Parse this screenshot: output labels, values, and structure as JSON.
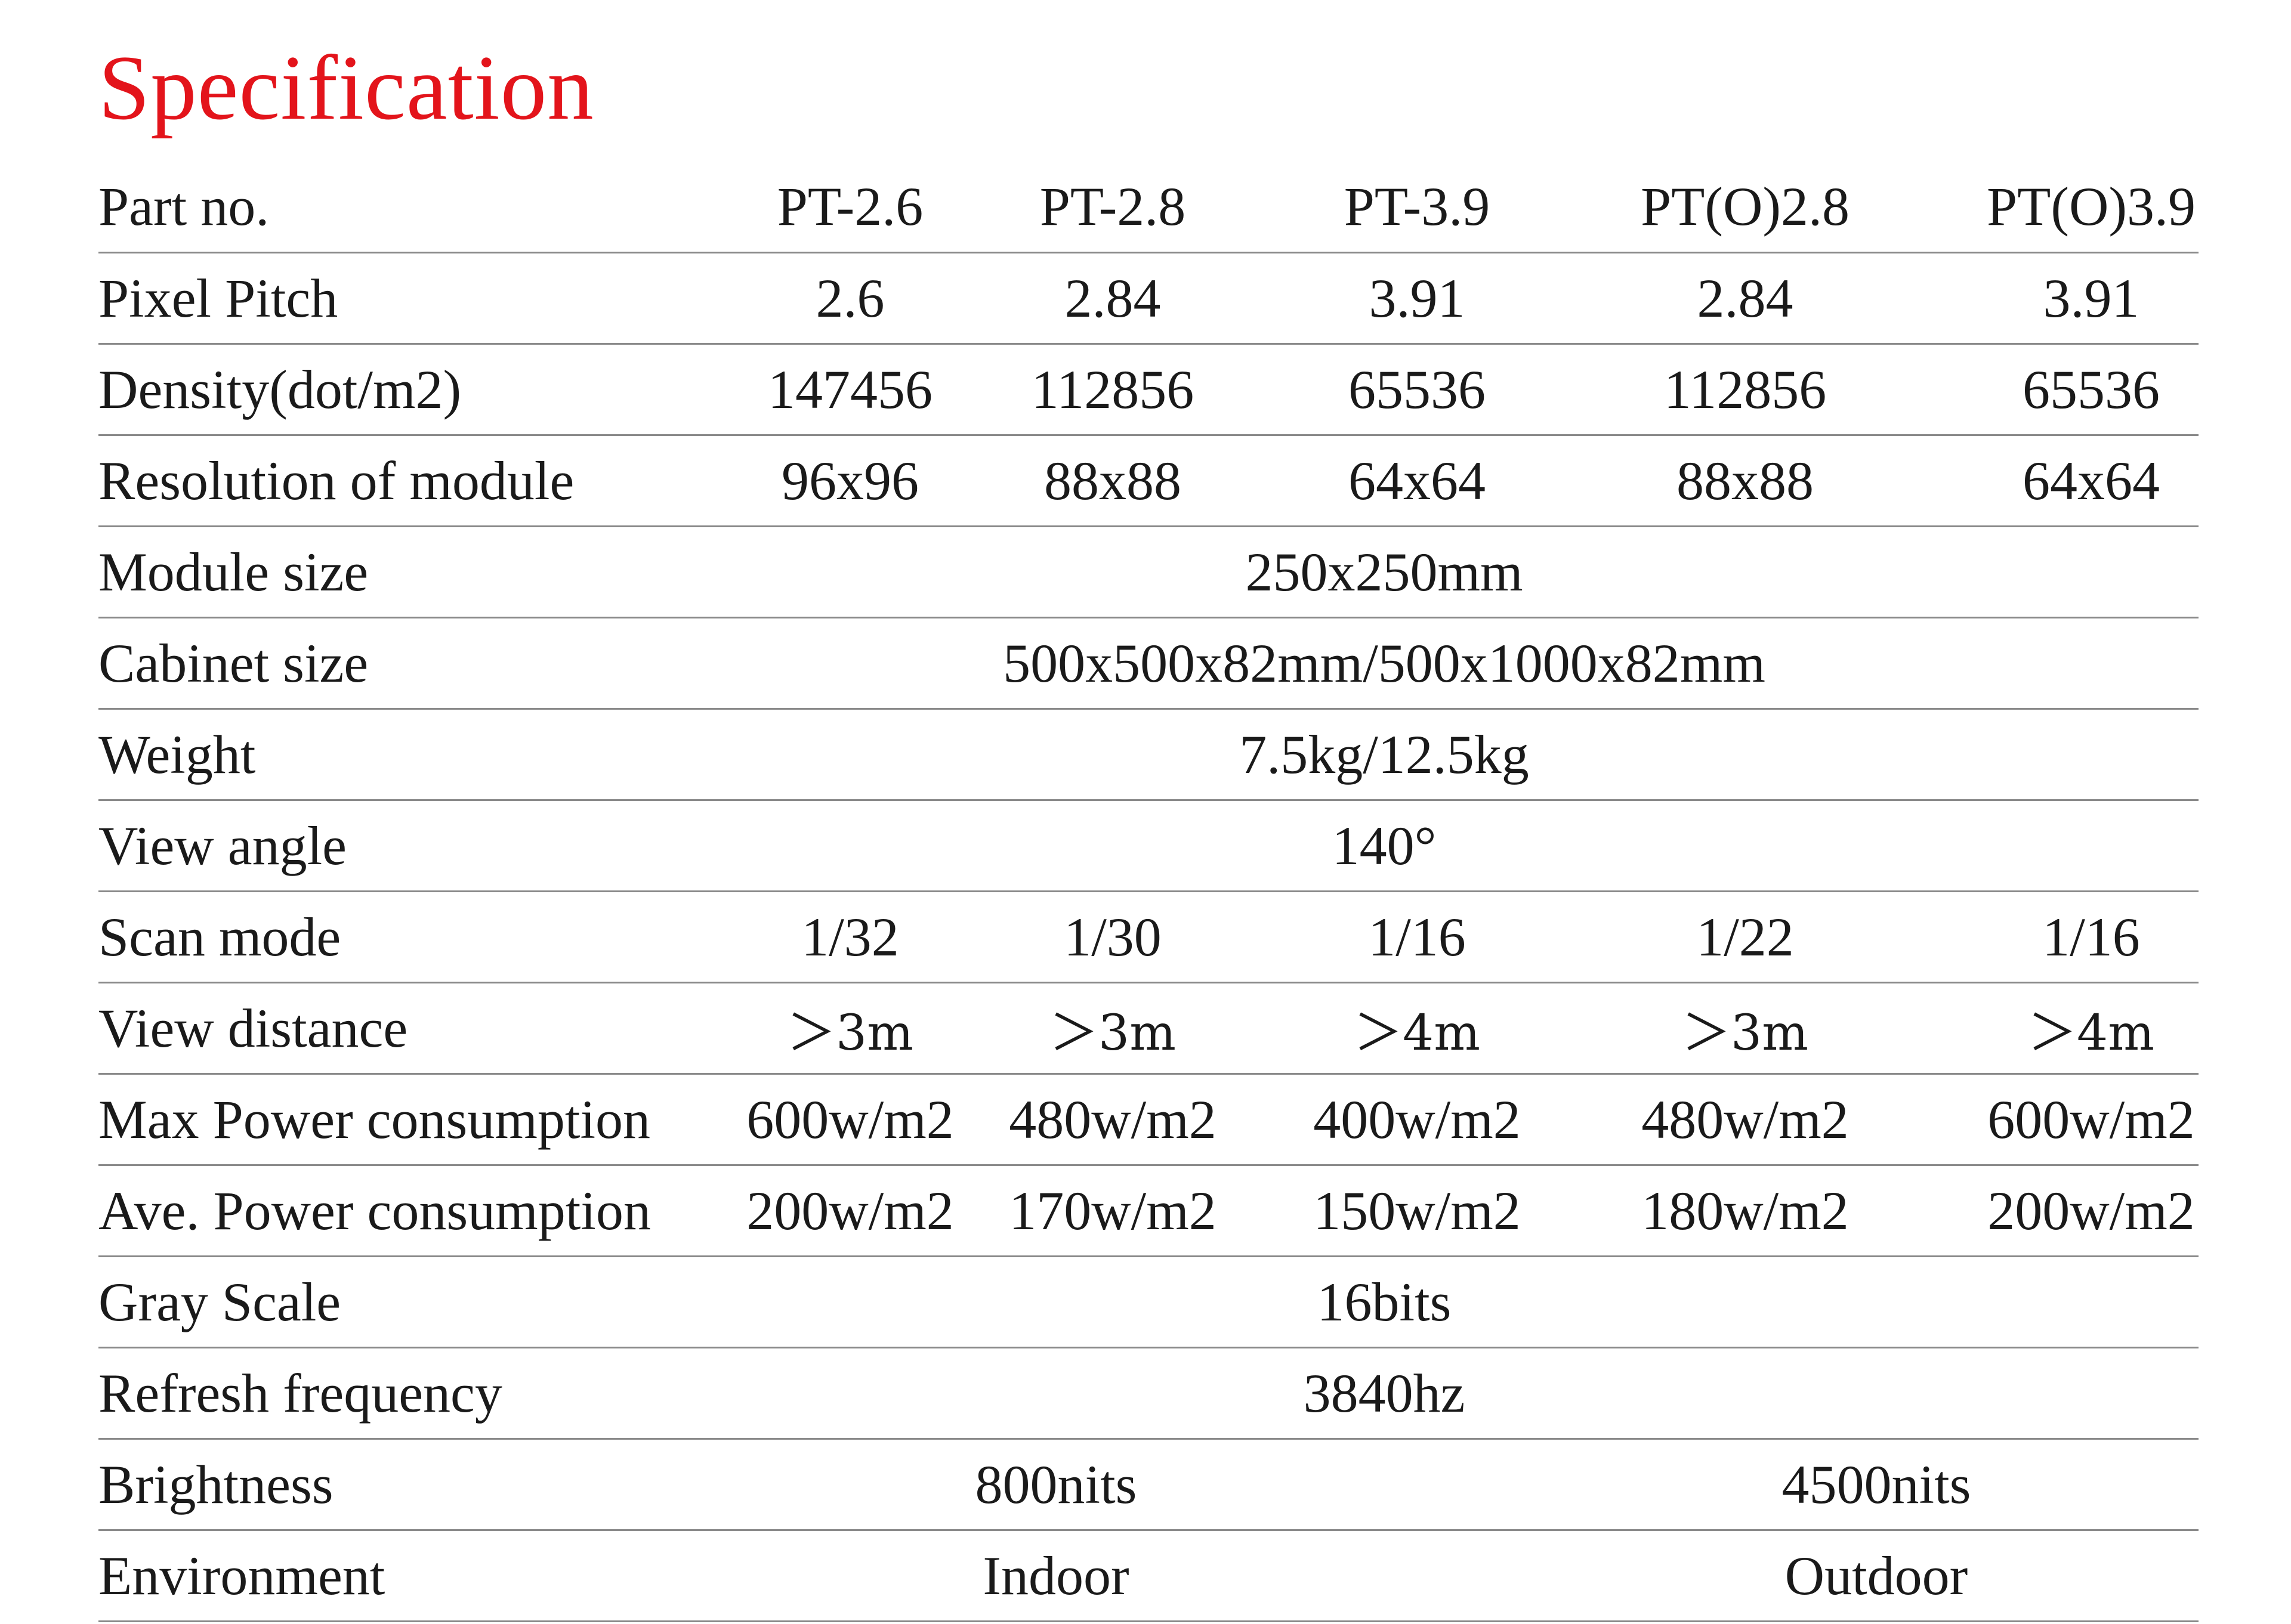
{
  "title": "Specification",
  "header": {
    "label": "Part no.",
    "models": [
      "PT-2.6",
      "PT-2.8",
      "PT-3.9",
      "PT(O)2.8",
      "PT(O)3.9"
    ]
  },
  "rows": {
    "pixel_pitch": {
      "label": "Pixel Pitch",
      "values": [
        "2.6",
        "2.84",
        "3.91",
        "2.84",
        "3.91"
      ]
    },
    "density": {
      "label": "Density(dot/m2)",
      "values": [
        "147456",
        "112856",
        "65536",
        "112856",
        "65536"
      ]
    },
    "resolution": {
      "label": "Resolution of module",
      "values": [
        "96x96",
        "88x88",
        "64x64",
        "88x88",
        "64x64"
      ]
    },
    "module_size": {
      "label": "Module size",
      "value": "250x250mm"
    },
    "cabinet_size": {
      "label": "Cabinet size",
      "value": "500x500x82mm/500x1000x82mm"
    },
    "weight": {
      "label": "Weight",
      "value": "7.5kg/12.5kg"
    },
    "view_angle": {
      "label": "View angle",
      "value": "140°"
    },
    "scan_mode": {
      "label": "Scan mode",
      "values": [
        "1/32",
        "1/30",
        "1/16",
        "1/22",
        "1/16"
      ]
    },
    "view_distance": {
      "label": "View distance",
      "values": [
        "＞3m",
        "＞3m",
        "＞4m",
        "＞3m",
        "＞4m"
      ]
    },
    "max_power": {
      "label": "Max Power consumption",
      "values": [
        "600w/m2",
        "480w/m2",
        "400w/m2",
        "480w/m2",
        "600w/m2"
      ]
    },
    "ave_power": {
      "label": "Ave. Power consumption",
      "values": [
        "200w/m2",
        "170w/m2",
        "150w/m2",
        "180w/m2",
        "200w/m2"
      ]
    },
    "gray_scale": {
      "label": "Gray Scale",
      "value": "16bits"
    },
    "refresh": {
      "label": "Refresh frequency",
      "value": "3840hz"
    },
    "brightness": {
      "label": "Brightness",
      "indoor": "800nits",
      "outdoor": "4500nits"
    },
    "environment": {
      "label": "Environment",
      "indoor": "Indoor",
      "outdoor": "Outdoor"
    }
  }
}
